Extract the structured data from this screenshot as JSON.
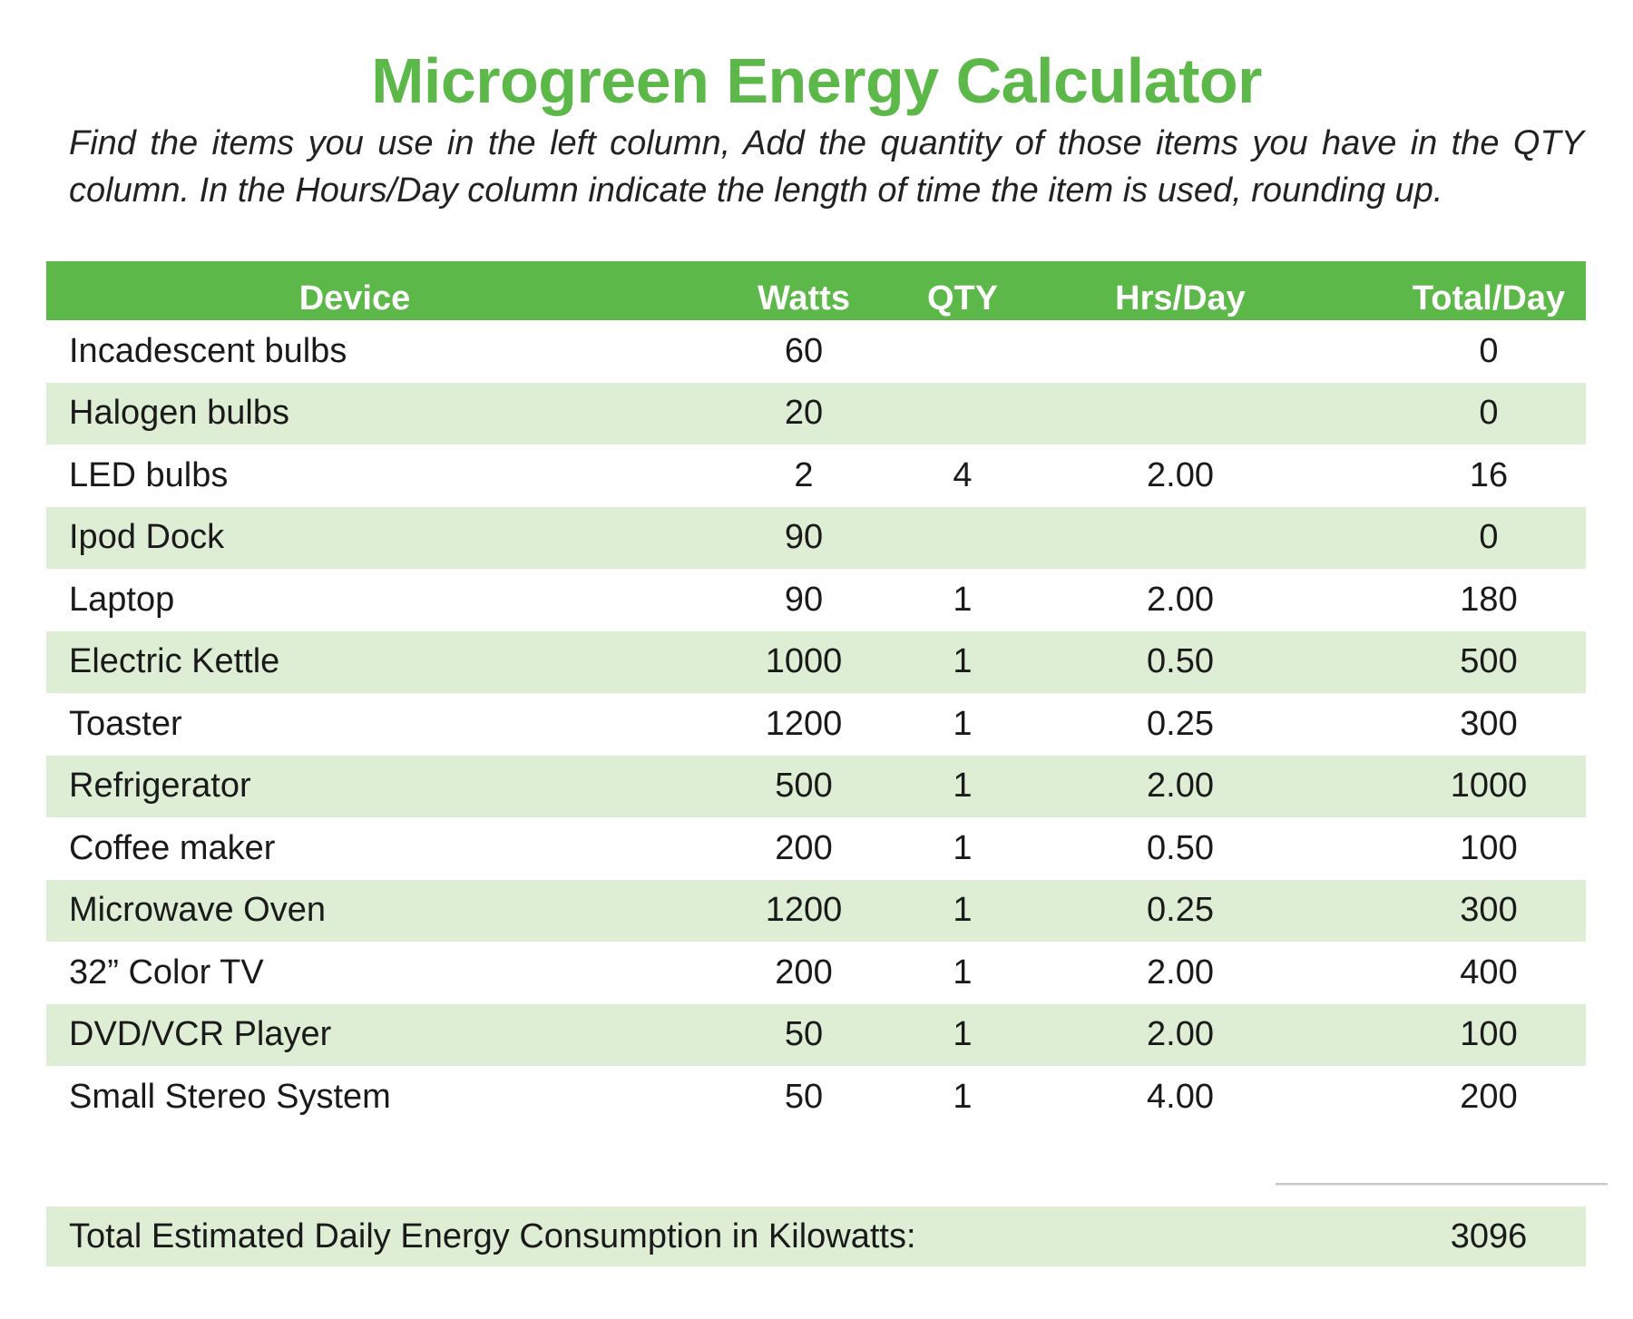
{
  "title": "Microgreen Energy Calculator",
  "intro": "Find the items you use in the left column, Add the quantity of those items you have in the QTY column. In the Hours/Day column indicate the length of time the item is used, rounding up.",
  "colors": {
    "accent": "#5cb848",
    "row_alt": "#deeed5",
    "header_text": "#ffffff"
  },
  "table": {
    "headers": {
      "device": "Device",
      "watts": "Watts",
      "qty": "QTY",
      "hrs": "Hrs/Day",
      "total": "Total/Day"
    },
    "rows": [
      {
        "device": "Incadescent bulbs",
        "watts": "60",
        "qty": "",
        "hrs": "",
        "total": "0"
      },
      {
        "device": "Halogen bulbs",
        "watts": "20",
        "qty": "",
        "hrs": "",
        "total": "0"
      },
      {
        "device": "LED bulbs",
        "watts": "2",
        "qty": "4",
        "hrs": "2.00",
        "total": "16"
      },
      {
        "device": "Ipod Dock",
        "watts": "90",
        "qty": "",
        "hrs": "",
        "total": "0"
      },
      {
        "device": "Laptop",
        "watts": "90",
        "qty": "1",
        "hrs": "2.00",
        "total": "180"
      },
      {
        "device": "Electric Kettle",
        "watts": "1000",
        "qty": "1",
        "hrs": "0.50",
        "total": "500"
      },
      {
        "device": "Toaster",
        "watts": "1200",
        "qty": "1",
        "hrs": "0.25",
        "total": "300"
      },
      {
        "device": "Refrigerator",
        "watts": "500",
        "qty": "1",
        "hrs": "2.00",
        "total": "1000"
      },
      {
        "device": "Coffee maker",
        "watts": "200",
        "qty": "1",
        "hrs": "0.50",
        "total": "100"
      },
      {
        "device": "Microwave Oven",
        "watts": "1200",
        "qty": "1",
        "hrs": "0.25",
        "total": "300"
      },
      {
        "device": "32” Color TV",
        "watts": "200",
        "qty": "1",
        "hrs": "2.00",
        "total": "400"
      },
      {
        "device": "DVD/VCR Player",
        "watts": "50",
        "qty": "1",
        "hrs": "2.00",
        "total": "100"
      },
      {
        "device": "Small Stereo System",
        "watts": "50",
        "qty": "1",
        "hrs": "4.00",
        "total": "200"
      }
    ]
  },
  "summary": {
    "label": "Total Estimated Daily Energy Consumption in Kilowatts:",
    "value": "3096"
  }
}
